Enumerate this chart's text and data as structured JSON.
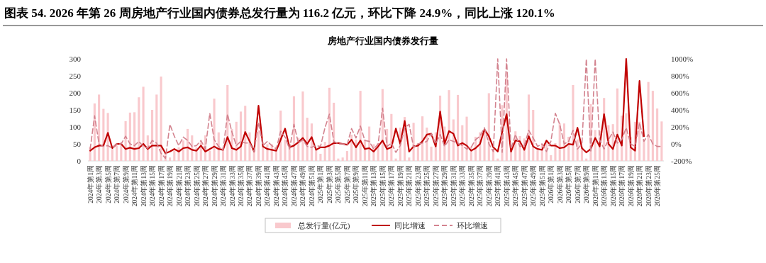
{
  "chart_data": {
    "type": "bar",
    "title": "图表 54. 2026 年第 26 周房地产行业国内债券总发行量为 116.2 亿元，环比下降 24.9%，同比上涨 120.1%",
    "subtitle": "房地产行业国内债券发行量",
    "categories": [
      "2024年第1周",
      null,
      "2024年第3周",
      null,
      "2024年第5周",
      null,
      "2024年第7周",
      null,
      "2024年第9周",
      null,
      "2024年第11周",
      null,
      "2024年第13周",
      null,
      "2024年第15周",
      null,
      "2024年第17周",
      null,
      "2024年第19周",
      null,
      "2024年第21周",
      null,
      "2024年第23周",
      null,
      "2024年第25周",
      null,
      "2024年第27周",
      null,
      "2024年第29周",
      null,
      "2024年第31周",
      null,
      "2024年第33周",
      null,
      "2024年第35周",
      null,
      "2024年第37周",
      null,
      "2024年第39周",
      null,
      "2024年第41周",
      null,
      "2024年第43周",
      null,
      "2024年第45周",
      null,
      "2024年第47周",
      null,
      "2024年第49周",
      null,
      "2024年第51周",
      null,
      "2025年第1周",
      null,
      "2025年第3周",
      null,
      "2025年第5周",
      null,
      "2025年第7周",
      null,
      "2025年第9周",
      null,
      "2025年第11周",
      null,
      "2025年第13周",
      null,
      "2025年第15周",
      null,
      "2025年第17周",
      null,
      "2025年第19周",
      null,
      "2025年第21周",
      null,
      "2025年第23周",
      null,
      "2025年第25周",
      null,
      "2025年第27周",
      null,
      "2025年第29周",
      null,
      "2025年第31周",
      null,
      "2025年第33周",
      null,
      "2025年第35周",
      null,
      "2025年第37周",
      null,
      "2025年第39周",
      null,
      "2025年第41周",
      null,
      "2025年第43周",
      null,
      "2025年第45周",
      null,
      "2025年第47周",
      null,
      "2025年第49周",
      null,
      "2025年第51周",
      null,
      "2026年第1周",
      null,
      "2026年第3周",
      null,
      "2026年第5周",
      null,
      "2026年第7周",
      null,
      "2026年第9周",
      null,
      "2026年第11周",
      null,
      "2026年第13周",
      null,
      "2026年第15周",
      null,
      "2026年第17周",
      null,
      "2026年第19周",
      null,
      "2026年第21周",
      null,
      "2026年第23周",
      null,
      "2026年第25周",
      null
    ],
    "series": [
      {
        "name": "总发行量(亿元)",
        "color": "#f9c9cd",
        "values": [
          42,
          169,
          195,
          153,
          141,
          35,
          45,
          56,
          117,
          142,
          143,
          187,
          218,
          75,
          150,
          195,
          248,
          21,
          10,
          30,
          40,
          60,
          94,
          75,
          40,
          55,
          75,
          30,
          183,
          84,
          40,
          223,
          94,
          115,
          145,
          162,
          84,
          35,
          90,
          42,
          49,
          49,
          42,
          148,
          63,
          49,
          190,
          68,
          204,
          127,
          110,
          35,
          21,
          56,
          215,
          171,
          7,
          10,
          29,
          77,
          63,
          206,
          63,
          101,
          49,
          52,
          211,
          94,
          138,
          7,
          98,
          129,
          10,
          112,
          52,
          131,
          98,
          42,
          84,
          192,
          101,
          208,
          122,
          194,
          105,
          130,
          42,
          71,
          84,
          91,
          199,
          35,
          7,
          164,
          246,
          31,
          87,
          73,
          66,
          195,
          150,
          31,
          49,
          52,
          17,
          52,
          110,
          110,
          71,
          223,
          63,
          42,
          7,
          167,
          91,
          87,
          185,
          105,
          108,
          213,
          133,
          140,
          70,
          115,
          115,
          63,
          232,
          206,
          154,
          116
        ]
      },
      {
        "name": "同比增速",
        "type": "line",
        "axis": "y2",
        "color": "#c00000",
        "line_style": "solid",
        "values": [
          -80,
          -40,
          -20,
          -20,
          130,
          -50,
          0,
          0,
          -60,
          -45,
          -60,
          -50,
          0,
          -60,
          -20,
          -20,
          -20,
          -110,
          -90,
          -60,
          -90,
          -50,
          -40,
          -70,
          -80,
          -20,
          -90,
          -60,
          -30,
          -60,
          -70,
          80,
          -50,
          -70,
          -30,
          140,
          30,
          -90,
          450,
          -30,
          -60,
          -70,
          -80,
          50,
          180,
          -40,
          -20,
          20,
          70,
          0,
          80,
          -70,
          -40,
          -40,
          -20,
          10,
          10,
          0,
          -10,
          50,
          -40,
          40,
          -60,
          -50,
          -90,
          -30,
          40,
          -60,
          -40,
          180,
          0,
          270,
          -90,
          -30,
          -20,
          30,
          110,
          120,
          -30,
          380,
          0,
          150,
          120,
          -20,
          10,
          -20,
          -80,
          -50,
          0,
          170,
          90,
          -40,
          -90,
          140,
          350,
          -90,
          40,
          30,
          -70,
          90,
          -30,
          -60,
          -70,
          40,
          -20,
          -20,
          -50,
          -40,
          0,
          -10,
          190,
          -50,
          -100,
          -60,
          70,
          -30,
          350,
          0,
          -60,
          110,
          -20,
          1000,
          -40,
          -80,
          740,
          90,
          null,
          null,
          null,
          null
        ]
      },
      {
        "name": "环比增速",
        "type": "line",
        "axis": "y2",
        "color": "#d3838f",
        "line_style": "dashed",
        "values": [
          -60,
          330,
          0,
          -30,
          -20,
          -50,
          0,
          0,
          90,
          0,
          -20,
          30,
          -30,
          -50,
          40,
          10,
          -110,
          -170,
          230,
          90,
          -20,
          80,
          40,
          -30,
          -20,
          40,
          -60,
          360,
          50,
          -30,
          -70,
          350,
          140,
          -20,
          30,
          10,
          10,
          -90,
          250,
          -20,
          30,
          -20,
          -60,
          150,
          80,
          -60,
          230,
          10,
          50,
          -30,
          -40,
          -20,
          -30,
          190,
          350,
          30,
          0,
          0,
          -10,
          180,
          70,
          210,
          40,
          30,
          -60,
          0,
          420,
          -30,
          10,
          -100,
          -20,
          190,
          230,
          -40,
          0,
          10,
          30,
          120,
          0,
          110,
          -30,
          50,
          30,
          10,
          -20,
          -60,
          -40,
          50,
          90,
          190,
          0,
          -90,
          1000,
          -100,
          1000,
          -60,
          110,
          -30,
          -20,
          160,
          70,
          -30,
          0,
          -90,
          30,
          360,
          230,
          0,
          30,
          160,
          -60,
          0,
          1000,
          -100,
          1000,
          50,
          -60,
          50,
          140,
          10,
          50,
          190,
          0,
          -30,
          250,
          30,
          110,
          0,
          -30,
          -30
        ]
      }
    ],
    "ylim": [
      0,
      300
    ],
    "yticks": [
      0,
      50,
      100,
      150,
      200,
      250,
      300
    ],
    "y2lim": [
      -200,
      1000
    ],
    "y2ticks": [
      {
        "value": -200,
        "label": "-200%"
      },
      {
        "value": 0,
        "label": "0%"
      },
      {
        "value": 200,
        "label": "200%"
      },
      {
        "value": 400,
        "label": "400%"
      },
      {
        "value": 600,
        "label": "600%"
      },
      {
        "value": 800,
        "label": "800%"
      },
      {
        "value": 1000,
        "label": "1000%"
      }
    ],
    "legend": "bottom",
    "marker": "none"
  }
}
